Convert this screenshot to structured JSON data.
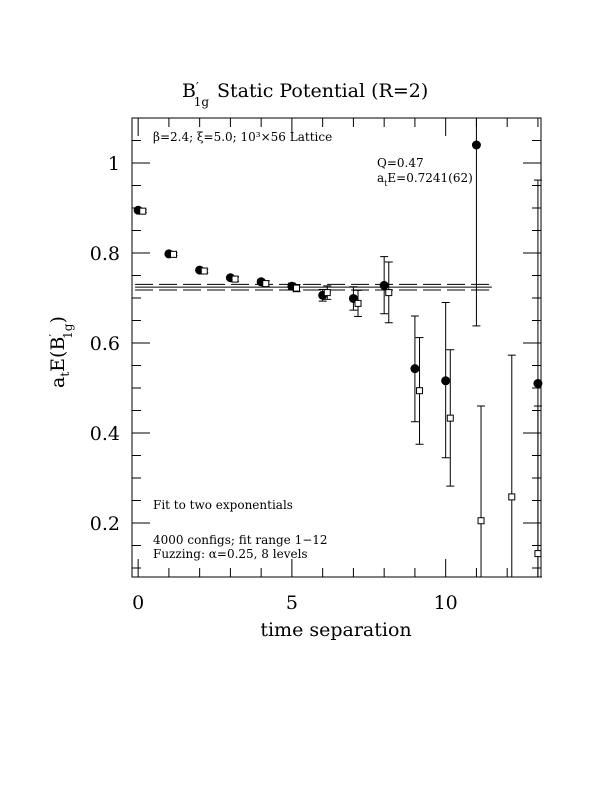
{
  "chart_data": {
    "type": "scatter",
    "title_main": "B",
    "title_sub": "1g",
    "title_rest": "Static Potential (R=2)",
    "xlabel": "time separation",
    "ylabel_prefix": "a",
    "ylabel_prefix_sub": "t",
    "ylabel_mid": "E(B",
    "ylabel_sub": "1g",
    "ylabel_end": ")",
    "xlim": [
      -0.2,
      13.1
    ],
    "ylim": [
      0.08,
      1.1
    ],
    "x_ticks": [
      0,
      5,
      10
    ],
    "x_tick_labels": [
      "0",
      "5",
      "10"
    ],
    "y_ticks": [
      0.2,
      0.4,
      0.6,
      0.8,
      1.0
    ],
    "y_tick_labels": [
      "0.2",
      "0.4",
      "0.6",
      "0.8",
      "1"
    ],
    "annotations": {
      "lattice": "β=2.4; ξ=5.0; 10³×56 Lattice",
      "q": "Q=0.47",
      "energy_prefix": "a",
      "energy_sub": "t",
      "energy_rest": "E=0.7241(62)",
      "fit_type": "Fit to two exponentials",
      "configs": "4000 configs; fit range 1−12",
      "fuzzing": "Fuzzing: α=0.25, 8 levels"
    },
    "fit_band": {
      "center": 0.7241,
      "err": 0.0062,
      "x_start": -0.1,
      "x_end": 11.5
    },
    "series": [
      {
        "marker": "filled-circle",
        "points": [
          {
            "x": 0,
            "y": 0.895,
            "lo": 0.893,
            "hi": 0.897
          },
          {
            "x": 1,
            "y": 0.798,
            "lo": 0.795,
            "hi": 0.801
          },
          {
            "x": 2,
            "y": 0.762,
            "lo": 0.759,
            "hi": 0.765
          },
          {
            "x": 3,
            "y": 0.745,
            "lo": 0.741,
            "hi": 0.749
          },
          {
            "x": 4,
            "y": 0.736,
            "lo": 0.731,
            "hi": 0.741
          },
          {
            "x": 5,
            "y": 0.726,
            "lo": 0.719,
            "hi": 0.733
          },
          {
            "x": 6,
            "y": 0.706,
            "lo": 0.693,
            "hi": 0.719
          },
          {
            "x": 7,
            "y": 0.699,
            "lo": 0.673,
            "hi": 0.725
          },
          {
            "x": 8,
            "y": 0.728,
            "lo": 0.665,
            "hi": 0.792
          },
          {
            "x": 9,
            "y": 0.543,
            "lo": 0.425,
            "hi": 0.66
          },
          {
            "x": 10,
            "y": 0.516,
            "lo": 0.345,
            "hi": 0.69
          },
          {
            "x": 11,
            "y": 1.04,
            "lo": 0.638,
            "hi": 1.1
          },
          {
            "x": 13,
            "y": 0.51,
            "lo": 0.08,
            "hi": 0.962
          }
        ]
      },
      {
        "marker": "open-square",
        "points": [
          {
            "x": 0.15,
            "y": 0.893,
            "lo": 0.89,
            "hi": 0.896
          },
          {
            "x": 1.15,
            "y": 0.797,
            "lo": 0.794,
            "hi": 0.8
          },
          {
            "x": 2.15,
            "y": 0.76,
            "lo": 0.756,
            "hi": 0.764
          },
          {
            "x": 3.15,
            "y": 0.742,
            "lo": 0.737,
            "hi": 0.747
          },
          {
            "x": 4.15,
            "y": 0.732,
            "lo": 0.726,
            "hi": 0.738
          },
          {
            "x": 5.15,
            "y": 0.722,
            "lo": 0.714,
            "hi": 0.73
          },
          {
            "x": 6.15,
            "y": 0.712,
            "lo": 0.697,
            "hi": 0.727
          },
          {
            "x": 7.15,
            "y": 0.688,
            "lo": 0.659,
            "hi": 0.717
          },
          {
            "x": 8.15,
            "y": 0.712,
            "lo": 0.645,
            "hi": 0.78
          },
          {
            "x": 9.15,
            "y": 0.494,
            "lo": 0.375,
            "hi": 0.612
          },
          {
            "x": 10.15,
            "y": 0.433,
            "lo": 0.282,
            "hi": 0.585
          },
          {
            "x": 11.15,
            "y": 0.205,
            "lo": 0.08,
            "hi": 0.46
          },
          {
            "x": 12.15,
            "y": 0.258,
            "lo": 0.08,
            "hi": 0.573
          },
          {
            "x": 13.0,
            "y": 0.132,
            "lo": 0.08,
            "hi": 0.46
          }
        ]
      }
    ]
  }
}
